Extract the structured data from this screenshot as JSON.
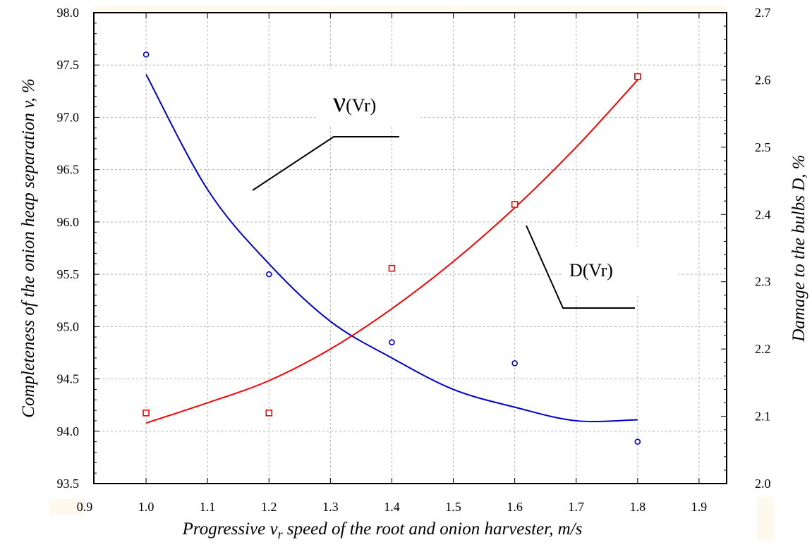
{
  "chart_data": {
    "type": "scatter",
    "xlabel": "Progressive vr speed of the root and onion harvester, m/s",
    "xlabel_parts": {
      "pre": "Progressive ",
      "var": "v",
      "sub": "r",
      "post": " speed of the root and onion harvester, m/s"
    },
    "ylabel_left": "Completeness of the onion heap separation v, %",
    "ylabel_right": "Damage to the bulbs D, %",
    "xlim": [
      0.9,
      2.0
    ],
    "ylim_left": [
      93.5,
      98.0
    ],
    "ylim_right": [
      2.0,
      2.7
    ],
    "x_ticks": [
      "0.9",
      "1.0",
      "1.1",
      "1.2",
      "1.3",
      "1.4",
      "1.5",
      "1.6",
      "1.7",
      "1.8",
      "1.9"
    ],
    "y_left_ticks": [
      "93.5",
      "94.0",
      "94.5",
      "95.0",
      "95.5",
      "96.0",
      "96.5",
      "97.0",
      "97.5",
      "98.0"
    ],
    "y_right_ticks": [
      "2.0",
      "2.1",
      "2.2",
      "2.3",
      "2.4",
      "2.5",
      "2.6",
      "2.7"
    ],
    "grid": true,
    "series": [
      {
        "axis": "left",
        "color": "#0000cc",
        "marker": "circle",
        "label": "ν(Vr)",
        "points": [
          {
            "x": 1.0,
            "y": 97.6
          },
          {
            "x": 1.2,
            "y": 95.5
          },
          {
            "x": 1.4,
            "y": 94.85
          },
          {
            "x": 1.6,
            "y": 94.65
          },
          {
            "x": 1.8,
            "y": 93.9
          }
        ],
        "fit": [
          {
            "x": 1.0,
            "y": 97.41
          },
          {
            "x": 1.1,
            "y": 96.31
          },
          {
            "x": 1.2,
            "y": 95.6
          },
          {
            "x": 1.3,
            "y": 95.05
          },
          {
            "x": 1.4,
            "y": 94.7
          },
          {
            "x": 1.5,
            "y": 94.4
          },
          {
            "x": 1.6,
            "y": 94.23
          },
          {
            "x": 1.7,
            "y": 94.1
          },
          {
            "x": 1.8,
            "y": 94.11
          }
        ]
      },
      {
        "axis": "right",
        "color": "#ff0000",
        "marker": "square",
        "label": "D(Vr)",
        "points": [
          {
            "x": 1.0,
            "y": 2.105
          },
          {
            "x": 1.2,
            "y": 2.105
          },
          {
            "x": 1.4,
            "y": 2.32
          },
          {
            "x": 1.6,
            "y": 2.415
          },
          {
            "x": 1.8,
            "y": 2.605
          }
        ],
        "fit": [
          {
            "x": 1.0,
            "y": 2.09
          },
          {
            "x": 1.1,
            "y": 2.12
          },
          {
            "x": 1.2,
            "y": 2.153
          },
          {
            "x": 1.3,
            "y": 2.2
          },
          {
            "x": 1.4,
            "y": 2.26
          },
          {
            "x": 1.5,
            "y": 2.33
          },
          {
            "x": 1.6,
            "y": 2.41
          },
          {
            "x": 1.7,
            "y": 2.5
          },
          {
            "x": 1.8,
            "y": 2.6
          }
        ]
      }
    ]
  }
}
